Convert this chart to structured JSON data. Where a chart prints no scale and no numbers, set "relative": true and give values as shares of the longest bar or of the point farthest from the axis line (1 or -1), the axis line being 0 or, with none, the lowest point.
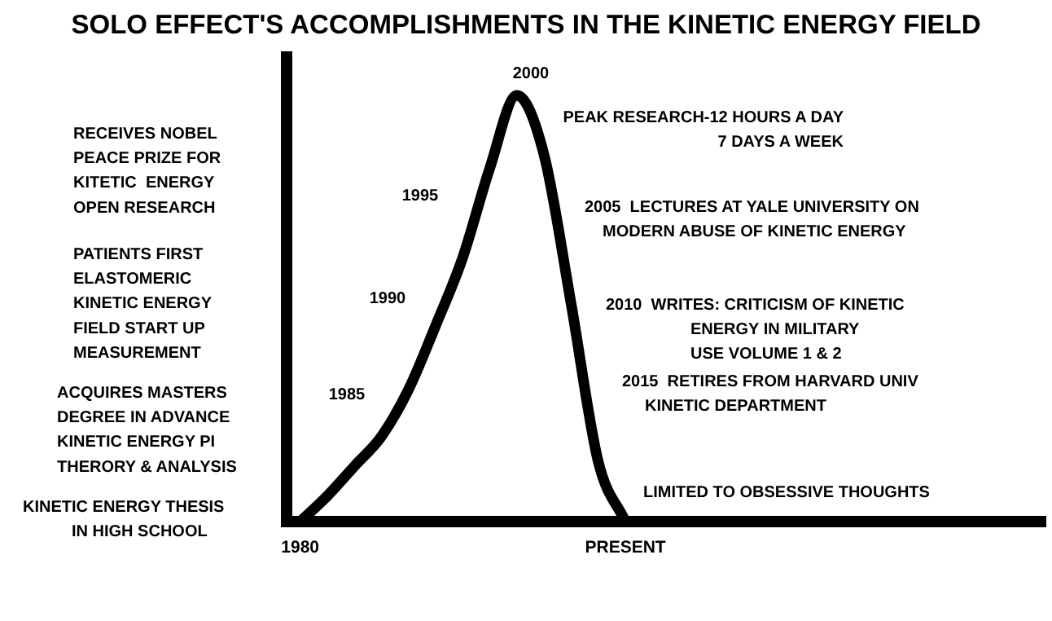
{
  "chart_data": {
    "type": "line",
    "title": "SOLO EFFECT'S ACCOMPLISHMENTS IN THE KINETIC ENERGY FIELD",
    "relative": true,
    "categories": [
      "1980",
      null,
      null,
      null,
      null,
      null,
      null,
      null,
      null,
      null,
      null,
      null,
      "PRESENT",
      null,
      null,
      null,
      null,
      null,
      null,
      null,
      null,
      null,
      null,
      null,
      null,
      null,
      null,
      null
    ],
    "series": [
      {
        "color": "#000000",
        "values": [
          0,
          0.06,
          0.13,
          0.2,
          0.31,
          0.46,
          0.62,
          0.83,
          1,
          0.86,
          0.51,
          0.14,
          0,
          null,
          null,
          null,
          null,
          null,
          null,
          null,
          null,
          null,
          null,
          null,
          null,
          null,
          null,
          null
        ]
      }
    ],
    "annotations": [
      "2000",
      "1995",
      "1990",
      "1985",
      "RECEIVES NOBEL\nPEACE PRIZE FOR\nKITETIC  ENERGY\nOPEN RESEARCH",
      "PATIENTS FIRST\nELASTOMERIC\nKINETIC ENERGY\nFIELD START UP\nMEASUREMENT",
      "ACQUIRES MASTERS\nDEGREE IN ADVANCE\nKINETIC ENERGY PI\nTHERORY & ANALYSIS",
      "KINETIC ENERGY THESIS\nIN HIGH SCHOOL",
      "PEAK RESEARCH-12 HOURS A DAY\n7 DAYS A WEEK",
      "2005  LECTURES AT YALE UNIVERSITY ON\nMODERN ABUSE OF KINETIC ENERGY",
      "2010  WRITES: CRITICISM OF KINETIC\nENERGY IN MILITARY\nUSE VOLUME 1 & 2",
      "2015  RETIRES FROM HARVARD UNIV\nKINETIC DEPARTMENT",
      "LIMITED TO OBSESSIVE THOUGHTS"
    ],
    "grid": false,
    "legend": false,
    "marker": "none",
    "line_style": "solid"
  }
}
